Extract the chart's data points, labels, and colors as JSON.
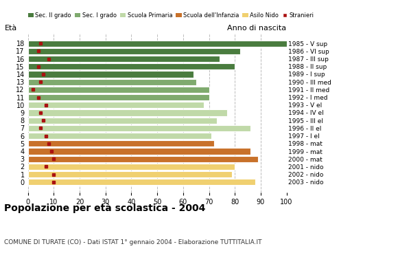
{
  "ages": [
    18,
    17,
    16,
    15,
    14,
    13,
    12,
    11,
    10,
    9,
    8,
    7,
    6,
    5,
    4,
    3,
    2,
    1,
    0
  ],
  "bar_values": [
    100,
    82,
    74,
    80,
    64,
    65,
    70,
    70,
    68,
    77,
    73,
    86,
    71,
    72,
    86,
    89,
    80,
    79,
    88
  ],
  "stranieri": [
    5,
    4,
    8,
    4,
    6,
    5,
    2,
    4,
    7,
    5,
    6,
    5,
    7,
    8,
    9,
    10,
    7,
    10,
    10
  ],
  "age_colors": {
    "18": "#4a7c3f",
    "17": "#4a7c3f",
    "16": "#4a7c3f",
    "15": "#4a7c3f",
    "14": "#4a7c3f",
    "13": "#7faa6e",
    "12": "#7faa6e",
    "11": "#7faa6e",
    "10": "#c0d9a8",
    "9": "#c0d9a8",
    "8": "#c0d9a8",
    "7": "#c0d9a8",
    "6": "#c0d9a8",
    "5": "#c8712a",
    "4": "#c8712a",
    "3": "#c8712a",
    "2": "#f0d070",
    "1": "#f0d070",
    "0": "#f0d070"
  },
  "anno_nascita": {
    "18": "1985 - V sup",
    "17": "1986 - VI sup",
    "16": "1987 - III sup",
    "15": "1988 - II sup",
    "14": "1989 - I sup",
    "13": "1990 - III med",
    "12": "1991 - II med",
    "11": "1992 - I med",
    "10": "1993 - V el",
    "9": "1994 - IV el",
    "8": "1995 - III el",
    "7": "1996 - II el",
    "6": "1997 - I el",
    "5": "1998 - mat",
    "4": "1999 - mat",
    "3": "2000 - mat",
    "2": "2001 - nido",
    "1": "2002 - nido",
    "0": "2003 - nido"
  },
  "xlim": [
    0,
    100
  ],
  "xticks": [
    0,
    10,
    20,
    30,
    40,
    50,
    60,
    70,
    80,
    90,
    100
  ],
  "title": "Popolazione per età scolastica - 2004",
  "subtitle": "COMUNE DI TURATE (CO) - Dati ISTAT 1° gennaio 2004 - Elaborazione TUTTITALIA.IT",
  "ylabel_eta": "Età",
  "ylabel_anno": "Anno di nascita",
  "legend_labels": [
    "Sec. II grado",
    "Sec. I grado",
    "Scuola Primaria",
    "Scuola dell'Infanzia",
    "Asilo Nido",
    "Stranieri"
  ],
  "legend_colors": [
    "#4a7c3f",
    "#7faa6e",
    "#c0d9a8",
    "#c8712a",
    "#f0d070",
    "#aa1111"
  ],
  "stranieri_color": "#aa1111",
  "grid_color": "#bbbbbb",
  "bg_color": "#ffffff"
}
